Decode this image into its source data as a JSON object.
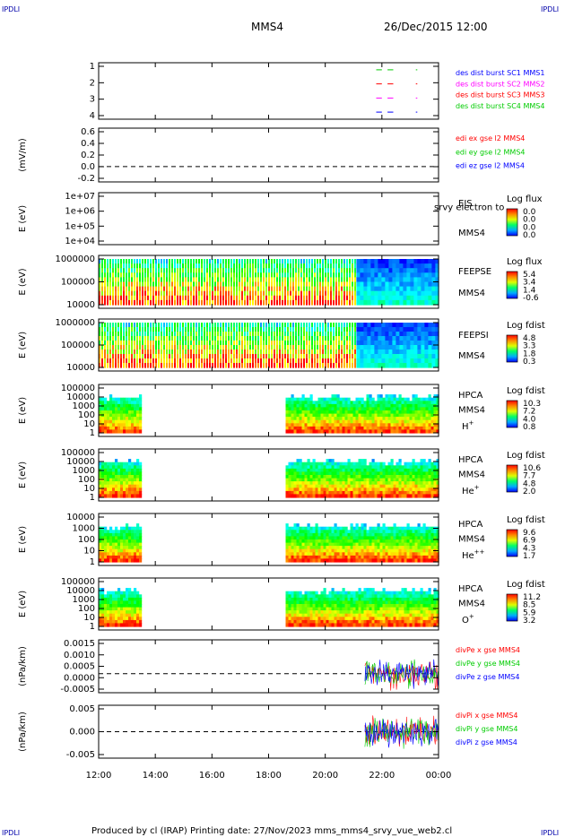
{
  "header": {
    "corner_left": "IPDLI",
    "corner_right": "IPDLI",
    "spacecraft": "MMS4",
    "datetime": "26/Dec/2015 12:00"
  },
  "footer": {
    "corner_left": "IPDLI",
    "corner_right": "IPDLI",
    "credit": "Produced by cl (IRAP)   Printing date: 27/Nov/2023   mms_mms4_srvy_vue_web2.cl"
  },
  "time_axis": {
    "range_hours": [
      12,
      24
    ],
    "ticks": [
      "12:00",
      "14:00",
      "16:00",
      "18:00",
      "20:00",
      "22:00",
      "00:00"
    ]
  },
  "colors": {
    "blue": "#0000ff",
    "magenta": "#ff00ff",
    "red": "#ff0000",
    "green": "#00cc00",
    "frame": "#000000"
  },
  "chart_data": [
    {
      "type": "scatter",
      "id": "burst",
      "ylabel": "",
      "yticks": [
        "1",
        "2",
        "3",
        "4"
      ],
      "ylim": [
        0.5,
        4.5
      ],
      "legend": [
        {
          "text": "des dist burst SC1 MMS1",
          "color": "#0000ff"
        },
        {
          "text": "des dist burst SC2 MMS2",
          "color": "#ff00ff"
        },
        {
          "text": "des dist burst SC3 MMS3",
          "color": "#ff0000"
        },
        {
          "text": "des dist burst SC4 MMS4",
          "color": "#00cc00"
        }
      ],
      "series": [
        {
          "y": 4,
          "color": "#00cc00",
          "segments": [
            [
              21.8,
              22.0
            ],
            [
              22.2,
              22.4
            ],
            [
              23.2,
              23.25
            ]
          ]
        },
        {
          "y": 3,
          "color": "#ff0000",
          "segments": [
            [
              21.8,
              22.0
            ],
            [
              22.2,
              22.4
            ],
            [
              23.2,
              23.25
            ]
          ]
        },
        {
          "y": 2,
          "color": "#ff00ff",
          "segments": [
            [
              21.8,
              22.0
            ],
            [
              22.2,
              22.4
            ],
            [
              23.2,
              23.25
            ]
          ]
        },
        {
          "y": 1,
          "color": "#0000ff",
          "segments": [
            [
              21.8,
              22.0
            ],
            [
              22.2,
              22.4
            ],
            [
              23.2,
              23.25
            ]
          ]
        }
      ]
    },
    {
      "type": "line",
      "id": "edi",
      "ylabel": "(mV/m)",
      "yticks": [
        "0.6",
        "0.4",
        "0.2",
        "0.0",
        "-0.2"
      ],
      "ylim": [
        -0.3,
        0.75
      ],
      "legend": [
        {
          "text": "edi ex gse l2 MMS4",
          "color": "#ff0000"
        },
        {
          "text": "edi ey gse l2 MMS4",
          "color": "#00cc00"
        },
        {
          "text": "edi ez gse l2 MMS4",
          "color": "#0000ff"
        }
      ]
    },
    {
      "type": "heatmap",
      "id": "eis",
      "ylabel": "E (eV)",
      "yticks": [
        "1e+07",
        "1e+06",
        "1e+05",
        "1e+04"
      ],
      "ylim": [
        4,
        7
      ],
      "label_lines": [
        "EIS",
        "srvy electron to",
        "MMS4"
      ],
      "colorbar": {
        "title": "Log flux",
        "ticks": [
          "0.0",
          "0.0",
          "0.0",
          "0.0"
        ]
      },
      "data_spans": []
    },
    {
      "type": "heatmap",
      "id": "feeps_e",
      "ylabel": "E (eV)",
      "yticks": [
        "1000000",
        "100000",
        "10000"
      ],
      "ylim": [
        4,
        6
      ],
      "label_lines": [
        "FEEPSE",
        "MMS4"
      ],
      "colorbar": {
        "title": "Log flux",
        "ticks": [
          "5.4",
          "3.4",
          "1.4",
          "-0.6"
        ]
      },
      "data_spans": [
        [
          12.0,
          21.1,
          "striped"
        ],
        [
          21.1,
          24.0,
          "dense"
        ]
      ]
    },
    {
      "type": "heatmap",
      "id": "feeps_i",
      "ylabel": "E (eV)",
      "yticks": [
        "1000000",
        "100000",
        "10000"
      ],
      "ylim": [
        4,
        6
      ],
      "label_lines": [
        "FEEPSI",
        "MMS4"
      ],
      "colorbar": {
        "title": "Log fdist",
        "ticks": [
          "4.8",
          "3.3",
          "1.8",
          "0.3"
        ]
      },
      "data_spans": [
        [
          12.0,
          21.1,
          "striped"
        ],
        [
          21.1,
          24.0,
          "dense"
        ]
      ]
    },
    {
      "type": "heatmap",
      "id": "hpca_h",
      "ylabel": "E (eV)",
      "yticks": [
        "100000",
        "10000",
        "1000",
        "100",
        "10",
        "1"
      ],
      "ylim": [
        0,
        5
      ],
      "label_lines": [
        "HPCA",
        "MMS4",
        "H+"
      ],
      "colorbar": {
        "title": "Log fdist",
        "ticks": [
          "10.3",
          "7.2",
          "4.0",
          "0.8"
        ]
      },
      "data_spans": [
        [
          12.0,
          13.45,
          "hpca"
        ],
        [
          18.6,
          24.0,
          "hpca"
        ]
      ]
    },
    {
      "type": "heatmap",
      "id": "hpca_he",
      "ylabel": "E (eV)",
      "yticks": [
        "100000",
        "10000",
        "1000",
        "100",
        "10",
        "1"
      ],
      "ylim": [
        0,
        5
      ],
      "label_lines": [
        "HPCA",
        "MMS4",
        "He+"
      ],
      "colorbar": {
        "title": "Log fdist",
        "ticks": [
          "10.6",
          "7.7",
          "4.8",
          "2.0"
        ]
      },
      "data_spans": [
        [
          12.0,
          13.45,
          "hpca"
        ],
        [
          18.6,
          24.0,
          "hpca"
        ]
      ]
    },
    {
      "type": "heatmap",
      "id": "hpca_he2",
      "ylabel": "E (eV)",
      "yticks": [
        "10000",
        "1000",
        "100",
        "10",
        "1"
      ],
      "ylim": [
        0,
        4.5
      ],
      "label_lines": [
        "HPCA",
        "MMS4",
        "He++"
      ],
      "colorbar": {
        "title": "Log fdist",
        "ticks": [
          "9.6",
          "6.9",
          "4.3",
          "1.7"
        ]
      },
      "data_spans": [
        [
          12.0,
          13.45,
          "hpca"
        ],
        [
          18.6,
          24.0,
          "hpca"
        ]
      ]
    },
    {
      "type": "heatmap",
      "id": "hpca_o",
      "ylabel": "E (eV)",
      "yticks": [
        "100000",
        "10000",
        "1000",
        "100",
        "10",
        "1"
      ],
      "ylim": [
        0,
        5
      ],
      "label_lines": [
        "HPCA",
        "MMS4",
        "O+"
      ],
      "colorbar": {
        "title": "Log fdist",
        "ticks": [
          "11.2",
          "8.5",
          "5.9",
          "3.2"
        ]
      },
      "data_spans": [
        [
          12.0,
          13.45,
          "hpca"
        ],
        [
          18.6,
          24.0,
          "hpca"
        ]
      ]
    },
    {
      "type": "line",
      "id": "divpe",
      "ylabel": "(nPa/km)",
      "yticks": [
        "0.0015",
        "0.0010",
        "0.0005",
        "0.0000",
        "-0.0005"
      ],
      "ylim": [
        -0.0009,
        0.0016
      ],
      "legend": [
        {
          "text": "divPe x gse MMS4",
          "color": "#ff0000"
        },
        {
          "text": "divPe y gse MMS4",
          "color": "#00cc00"
        },
        {
          "text": "divPe z gse MMS4",
          "color": "#0000ff"
        }
      ],
      "data_span": [
        21.4,
        24.0
      ],
      "amplitude": 0.0008
    },
    {
      "type": "line",
      "id": "divpi",
      "ylabel": "(nPa/km)",
      "yticks": [
        "0.005",
        "0.000",
        "-0.005"
      ],
      "ylim": [
        -0.009,
        0.009
      ],
      "legend": [
        {
          "text": "divPi x gse MMS4",
          "color": "#ff0000"
        },
        {
          "text": "divPi y gse MMS4",
          "color": "#00cc00"
        },
        {
          "text": "divPi z gse MMS4",
          "color": "#0000ff"
        }
      ],
      "data_span": [
        21.4,
        24.0
      ],
      "amplitude": 0.006
    }
  ]
}
